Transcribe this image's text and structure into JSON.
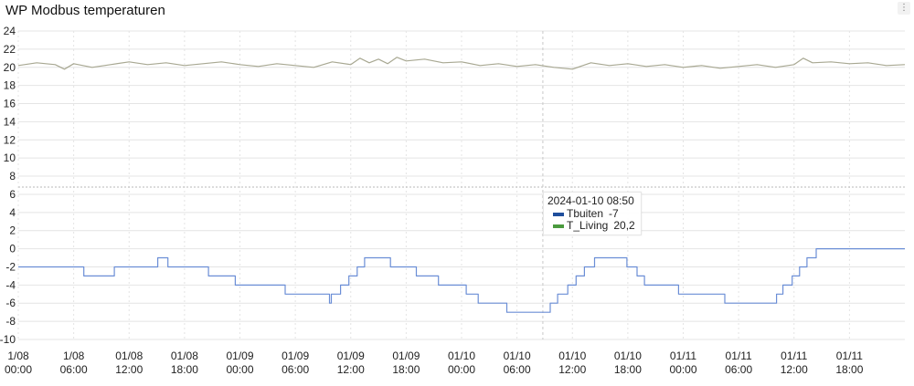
{
  "panel": {
    "title": "WP Modbus temperaturen",
    "menu_label": "⋮"
  },
  "tooltip": {
    "time": "2024-01-10 08:50",
    "rows": [
      {
        "name": "Tbuiten",
        "value": "-7",
        "color": "#1f4e9c"
      },
      {
        "name": "T_Living",
        "value": "20,2",
        "color": "#4a9a3e"
      }
    ]
  },
  "chart_data": {
    "type": "line",
    "ylim": [
      -10,
      24
    ],
    "yticks": [
      24,
      22,
      20,
      18,
      16,
      14,
      12,
      10,
      8,
      6,
      4,
      2,
      0,
      -2,
      -4,
      -6,
      -8,
      -10
    ],
    "xlim_hours": [
      0,
      96
    ],
    "xticks": [
      {
        "h": 0,
        "line1": "1/08",
        "line2": "00:00"
      },
      {
        "h": 6,
        "line1": "1/08",
        "line2": "06:00"
      },
      {
        "h": 12,
        "line1": "01/08",
        "line2": "12:00"
      },
      {
        "h": 18,
        "line1": "01/08",
        "line2": "18:00"
      },
      {
        "h": 24,
        "line1": "01/09",
        "line2": "00:00"
      },
      {
        "h": 30,
        "line1": "01/09",
        "line2": "06:00"
      },
      {
        "h": 36,
        "line1": "01/09",
        "line2": "12:00"
      },
      {
        "h": 42,
        "line1": "01/09",
        "line2": "18:00"
      },
      {
        "h": 48,
        "line1": "01/10",
        "line2": "00:00"
      },
      {
        "h": 54,
        "line1": "01/10",
        "line2": "06:00"
      },
      {
        "h": 60,
        "line1": "01/10",
        "line2": "12:00"
      },
      {
        "h": 66,
        "line1": "01/10",
        "line2": "18:00"
      },
      {
        "h": 72,
        "line1": "01/11",
        "line2": "00:00"
      },
      {
        "h": 78,
        "line1": "01/11",
        "line2": "06:00"
      },
      {
        "h": 84,
        "line1": "01/11",
        "line2": "12:00"
      },
      {
        "h": 90,
        "line1": "01/11",
        "line2": "18:00"
      }
    ],
    "threshold": 6.8,
    "cursor_hours": 56.8,
    "series": [
      {
        "name": "Tbuiten",
        "color": "#6b8ed6",
        "step": true,
        "points": [
          [
            0,
            -2
          ],
          [
            7.1,
            -2
          ],
          [
            7.1,
            -3
          ],
          [
            10.4,
            -3
          ],
          [
            10.4,
            -2
          ],
          [
            15.1,
            -2
          ],
          [
            15.1,
            -1
          ],
          [
            16.2,
            -1
          ],
          [
            16.2,
            -2
          ],
          [
            20.6,
            -2
          ],
          [
            20.6,
            -3
          ],
          [
            23.5,
            -3
          ],
          [
            23.5,
            -4
          ],
          [
            28.9,
            -4
          ],
          [
            28.9,
            -5
          ],
          [
            33.7,
            -5
          ],
          [
            33.7,
            -6
          ],
          [
            33.9,
            -6
          ],
          [
            33.9,
            -5
          ],
          [
            34.9,
            -5
          ],
          [
            34.9,
            -4
          ],
          [
            35.8,
            -4
          ],
          [
            35.8,
            -3
          ],
          [
            36.7,
            -3
          ],
          [
            36.7,
            -2
          ],
          [
            37.5,
            -2
          ],
          [
            37.5,
            -1
          ],
          [
            40.3,
            -1
          ],
          [
            40.3,
            -2
          ],
          [
            43.1,
            -2
          ],
          [
            43.1,
            -3
          ],
          [
            45.5,
            -3
          ],
          [
            45.5,
            -4
          ],
          [
            48.5,
            -4
          ],
          [
            48.5,
            -5
          ],
          [
            49.8,
            -5
          ],
          [
            49.8,
            -6
          ],
          [
            52.9,
            -6
          ],
          [
            52.9,
            -7
          ],
          [
            57.6,
            -7
          ],
          [
            57.6,
            -6
          ],
          [
            58.4,
            -6
          ],
          [
            58.4,
            -5
          ],
          [
            59.5,
            -5
          ],
          [
            59.5,
            -4
          ],
          [
            60.4,
            -4
          ],
          [
            60.4,
            -3
          ],
          [
            61.3,
            -3
          ],
          [
            61.3,
            -2
          ],
          [
            62.4,
            -2
          ],
          [
            62.4,
            -1
          ],
          [
            65.9,
            -1
          ],
          [
            65.9,
            -2
          ],
          [
            67.0,
            -2
          ],
          [
            67.0,
            -3
          ],
          [
            67.8,
            -3
          ],
          [
            67.8,
            -4
          ],
          [
            71.5,
            -4
          ],
          [
            71.5,
            -5
          ],
          [
            76.5,
            -5
          ],
          [
            76.5,
            -6
          ],
          [
            82.1,
            -6
          ],
          [
            82.1,
            -5
          ],
          [
            82.8,
            -5
          ],
          [
            82.8,
            -4
          ],
          [
            83.8,
            -4
          ],
          [
            83.8,
            -3
          ],
          [
            84.6,
            -3
          ],
          [
            84.6,
            -2
          ],
          [
            85.4,
            -2
          ],
          [
            85.4,
            -1
          ],
          [
            86.4,
            -1
          ],
          [
            86.4,
            0
          ],
          [
            96,
            0
          ]
        ]
      },
      {
        "name": "T_Living",
        "color": "#a8a892",
        "step": false,
        "points": [
          [
            0,
            20.2
          ],
          [
            2,
            20.5
          ],
          [
            4,
            20.3
          ],
          [
            5,
            19.8
          ],
          [
            6,
            20.4
          ],
          [
            8,
            20.0
          ],
          [
            10,
            20.3
          ],
          [
            12,
            20.6
          ],
          [
            14,
            20.3
          ],
          [
            16,
            20.5
          ],
          [
            18,
            20.2
          ],
          [
            20,
            20.4
          ],
          [
            22,
            20.6
          ],
          [
            24,
            20.3
          ],
          [
            26,
            20.1
          ],
          [
            28,
            20.4
          ],
          [
            30,
            20.2
          ],
          [
            32,
            20.0
          ],
          [
            34,
            20.6
          ],
          [
            36,
            20.3
          ],
          [
            37,
            21.0
          ],
          [
            38,
            20.5
          ],
          [
            39,
            20.9
          ],
          [
            40,
            20.4
          ],
          [
            41,
            21.1
          ],
          [
            42,
            20.7
          ],
          [
            44,
            20.9
          ],
          [
            46,
            20.5
          ],
          [
            48,
            20.6
          ],
          [
            50,
            20.2
          ],
          [
            52,
            20.4
          ],
          [
            54,
            20.1
          ],
          [
            56,
            20.3
          ],
          [
            58,
            20.0
          ],
          [
            60,
            19.8
          ],
          [
            62,
            20.5
          ],
          [
            64,
            20.2
          ],
          [
            66,
            20.4
          ],
          [
            68,
            20.1
          ],
          [
            70,
            20.3
          ],
          [
            72,
            20.0
          ],
          [
            74,
            20.2
          ],
          [
            76,
            19.9
          ],
          [
            78,
            20.1
          ],
          [
            80,
            20.3
          ],
          [
            82,
            20.0
          ],
          [
            84,
            20.3
          ],
          [
            85,
            21.0
          ],
          [
            86,
            20.5
          ],
          [
            88,
            20.6
          ],
          [
            90,
            20.4
          ],
          [
            92,
            20.5
          ],
          [
            94,
            20.2
          ],
          [
            96,
            20.3
          ]
        ]
      }
    ]
  }
}
